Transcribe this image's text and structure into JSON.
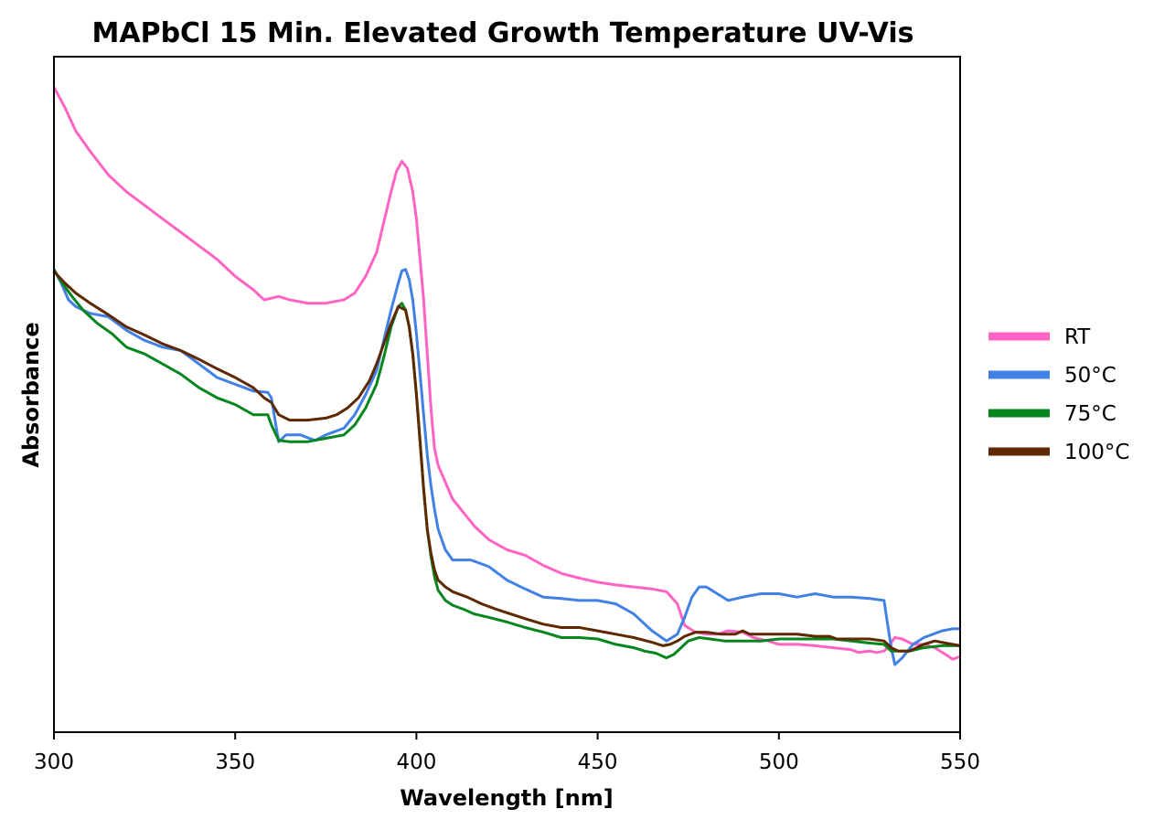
{
  "chart_data": {
    "type": "line",
    "title": "MAPbCl 15 Min. Elevated Growth Temperature UV-Vis",
    "xlabel": "Wavelength [nm]",
    "ylabel": "Absorbance",
    "xlim": [
      300,
      550
    ],
    "ylim": [
      0,
      1
    ],
    "x_ticks": [
      300,
      350,
      400,
      450,
      500,
      550
    ],
    "y_ticks_shown": false,
    "grid": false,
    "legend_position": "right",
    "series": [
      {
        "name": "RT",
        "color": "#ff63c3",
        "points": [
          [
            300,
            0.955
          ],
          [
            303,
            0.925
          ],
          [
            306,
            0.89
          ],
          [
            310,
            0.86
          ],
          [
            315,
            0.825
          ],
          [
            320,
            0.8
          ],
          [
            325,
            0.78
          ],
          [
            330,
            0.76
          ],
          [
            335,
            0.74
          ],
          [
            340,
            0.72
          ],
          [
            345,
            0.7
          ],
          [
            350,
            0.675
          ],
          [
            355,
            0.655
          ],
          [
            358,
            0.64
          ],
          [
            362,
            0.645
          ],
          [
            365,
            0.64
          ],
          [
            370,
            0.635
          ],
          [
            375,
            0.635
          ],
          [
            380,
            0.64
          ],
          [
            383,
            0.65
          ],
          [
            386,
            0.675
          ],
          [
            389,
            0.71
          ],
          [
            391,
            0.755
          ],
          [
            393,
            0.8
          ],
          [
            394.5,
            0.83
          ],
          [
            396,
            0.845
          ],
          [
            397.5,
            0.835
          ],
          [
            399,
            0.8
          ],
          [
            400,
            0.76
          ],
          [
            401,
            0.7
          ],
          [
            402,
            0.64
          ],
          [
            403,
            0.56
          ],
          [
            404,
            0.48
          ],
          [
            405,
            0.42
          ],
          [
            406,
            0.395
          ],
          [
            408,
            0.37
          ],
          [
            410,
            0.345
          ],
          [
            413,
            0.325
          ],
          [
            416,
            0.305
          ],
          [
            420,
            0.285
          ],
          [
            425,
            0.27
          ],
          [
            430,
            0.262
          ],
          [
            435,
            0.247
          ],
          [
            440,
            0.235
          ],
          [
            445,
            0.228
          ],
          [
            450,
            0.222
          ],
          [
            455,
            0.218
          ],
          [
            460,
            0.215
          ],
          [
            465,
            0.212
          ],
          [
            469,
            0.208
          ],
          [
            472,
            0.19
          ],
          [
            474,
            0.158
          ],
          [
            477,
            0.148
          ],
          [
            480,
            0.145
          ],
          [
            483,
            0.145
          ],
          [
            486,
            0.15
          ],
          [
            490,
            0.148
          ],
          [
            493,
            0.14
          ],
          [
            497,
            0.135
          ],
          [
            500,
            0.13
          ],
          [
            505,
            0.13
          ],
          [
            510,
            0.128
          ],
          [
            515,
            0.125
          ],
          [
            520,
            0.122
          ],
          [
            522,
            0.118
          ],
          [
            525,
            0.12
          ],
          [
            527,
            0.118
          ],
          [
            529,
            0.12
          ],
          [
            530,
            0.125
          ],
          [
            532,
            0.14
          ],
          [
            534,
            0.138
          ],
          [
            537,
            0.13
          ],
          [
            540,
            0.13
          ],
          [
            543,
            0.125
          ],
          [
            546,
            0.115
          ],
          [
            548,
            0.108
          ],
          [
            550,
            0.112
          ]
        ]
      },
      {
        "name": "50°C",
        "color": "#4181e5",
        "points": [
          [
            300,
            0.685
          ],
          [
            302,
            0.665
          ],
          [
            304,
            0.64
          ],
          [
            306,
            0.63
          ],
          [
            310,
            0.62
          ],
          [
            315,
            0.615
          ],
          [
            320,
            0.595
          ],
          [
            325,
            0.58
          ],
          [
            330,
            0.57
          ],
          [
            335,
            0.565
          ],
          [
            340,
            0.545
          ],
          [
            345,
            0.525
          ],
          [
            350,
            0.515
          ],
          [
            355,
            0.505
          ],
          [
            359,
            0.503
          ],
          [
            360,
            0.495
          ],
          [
            361,
            0.462
          ],
          [
            362,
            0.43
          ],
          [
            364,
            0.44
          ],
          [
            368,
            0.44
          ],
          [
            372,
            0.432
          ],
          [
            375,
            0.44
          ],
          [
            380,
            0.45
          ],
          [
            383,
            0.47
          ],
          [
            386,
            0.5
          ],
          [
            389,
            0.535
          ],
          [
            391,
            0.58
          ],
          [
            393,
            0.625
          ],
          [
            395,
            0.665
          ],
          [
            396,
            0.683
          ],
          [
            397,
            0.685
          ],
          [
            398,
            0.67
          ],
          [
            399,
            0.64
          ],
          [
            400,
            0.59
          ],
          [
            401,
            0.53
          ],
          [
            402,
            0.47
          ],
          [
            403,
            0.41
          ],
          [
            404,
            0.365
          ],
          [
            405,
            0.33
          ],
          [
            406,
            0.3
          ],
          [
            408,
            0.27
          ],
          [
            410,
            0.255
          ],
          [
            415,
            0.255
          ],
          [
            420,
            0.245
          ],
          [
            425,
            0.225
          ],
          [
            430,
            0.212
          ],
          [
            435,
            0.2
          ],
          [
            440,
            0.198
          ],
          [
            445,
            0.195
          ],
          [
            450,
            0.195
          ],
          [
            455,
            0.19
          ],
          [
            460,
            0.175
          ],
          [
            463,
            0.16
          ],
          [
            465,
            0.15
          ],
          [
            469,
            0.135
          ],
          [
            472,
            0.145
          ],
          [
            474,
            0.17
          ],
          [
            476,
            0.2
          ],
          [
            478,
            0.215
          ],
          [
            480,
            0.215
          ],
          [
            483,
            0.205
          ],
          [
            486,
            0.195
          ],
          [
            490,
            0.2
          ],
          [
            495,
            0.205
          ],
          [
            500,
            0.205
          ],
          [
            505,
            0.2
          ],
          [
            510,
            0.205
          ],
          [
            515,
            0.2
          ],
          [
            520,
            0.2
          ],
          [
            525,
            0.198
          ],
          [
            529,
            0.195
          ],
          [
            530,
            0.16
          ],
          [
            531,
            0.125
          ],
          [
            532,
            0.1
          ],
          [
            534,
            0.11
          ],
          [
            537,
            0.13
          ],
          [
            540,
            0.14
          ],
          [
            545,
            0.15
          ],
          [
            548,
            0.153
          ],
          [
            550,
            0.153
          ]
        ]
      },
      {
        "name": "75°C",
        "color": "#07861f",
        "points": [
          [
            300,
            0.685
          ],
          [
            302,
            0.667
          ],
          [
            305,
            0.645
          ],
          [
            308,
            0.625
          ],
          [
            312,
            0.605
          ],
          [
            316,
            0.59
          ],
          [
            320,
            0.57
          ],
          [
            325,
            0.56
          ],
          [
            330,
            0.545
          ],
          [
            335,
            0.53
          ],
          [
            340,
            0.51
          ],
          [
            345,
            0.495
          ],
          [
            350,
            0.485
          ],
          [
            355,
            0.47
          ],
          [
            359,
            0.47
          ],
          [
            360,
            0.455
          ],
          [
            362,
            0.432
          ],
          [
            365,
            0.43
          ],
          [
            370,
            0.43
          ],
          [
            375,
            0.435
          ],
          [
            380,
            0.44
          ],
          [
            383,
            0.455
          ],
          [
            386,
            0.48
          ],
          [
            389,
            0.515
          ],
          [
            391,
            0.555
          ],
          [
            393,
            0.6
          ],
          [
            395,
            0.63
          ],
          [
            396,
            0.635
          ],
          [
            397,
            0.625
          ],
          [
            398,
            0.6
          ],
          [
            399,
            0.56
          ],
          [
            400,
            0.5
          ],
          [
            401,
            0.43
          ],
          [
            402,
            0.36
          ],
          [
            403,
            0.3
          ],
          [
            404,
            0.26
          ],
          [
            405,
            0.23
          ],
          [
            406,
            0.21
          ],
          [
            408,
            0.195
          ],
          [
            410,
            0.188
          ],
          [
            413,
            0.182
          ],
          [
            416,
            0.175
          ],
          [
            420,
            0.17
          ],
          [
            425,
            0.163
          ],
          [
            430,
            0.155
          ],
          [
            435,
            0.148
          ],
          [
            440,
            0.14
          ],
          [
            445,
            0.14
          ],
          [
            450,
            0.138
          ],
          [
            455,
            0.13
          ],
          [
            460,
            0.125
          ],
          [
            463,
            0.12
          ],
          [
            466,
            0.117
          ],
          [
            469,
            0.11
          ],
          [
            471,
            0.115
          ],
          [
            473,
            0.125
          ],
          [
            475,
            0.135
          ],
          [
            478,
            0.14
          ],
          [
            481,
            0.138
          ],
          [
            485,
            0.135
          ],
          [
            490,
            0.135
          ],
          [
            495,
            0.135
          ],
          [
            500,
            0.138
          ],
          [
            505,
            0.138
          ],
          [
            510,
            0.138
          ],
          [
            515,
            0.138
          ],
          [
            520,
            0.135
          ],
          [
            525,
            0.132
          ],
          [
            529,
            0.13
          ],
          [
            531,
            0.12
          ],
          [
            533,
            0.12
          ],
          [
            536,
            0.12
          ],
          [
            540,
            0.125
          ],
          [
            545,
            0.128
          ],
          [
            550,
            0.128
          ]
        ]
      },
      {
        "name": "100°C",
        "color": "#5e2800",
        "points": [
          [
            300,
            0.682
          ],
          [
            303,
            0.665
          ],
          [
            306,
            0.65
          ],
          [
            310,
            0.635
          ],
          [
            315,
            0.618
          ],
          [
            320,
            0.6
          ],
          [
            325,
            0.588
          ],
          [
            330,
            0.575
          ],
          [
            335,
            0.565
          ],
          [
            340,
            0.552
          ],
          [
            345,
            0.538
          ],
          [
            350,
            0.525
          ],
          [
            355,
            0.51
          ],
          [
            358,
            0.495
          ],
          [
            360,
            0.488
          ],
          [
            362,
            0.47
          ],
          [
            365,
            0.462
          ],
          [
            370,
            0.462
          ],
          [
            375,
            0.465
          ],
          [
            378,
            0.47
          ],
          [
            381,
            0.48
          ],
          [
            384,
            0.495
          ],
          [
            387,
            0.52
          ],
          [
            389,
            0.545
          ],
          [
            391,
            0.575
          ],
          [
            393,
            0.605
          ],
          [
            395,
            0.63
          ],
          [
            397,
            0.625
          ],
          [
            398,
            0.6
          ],
          [
            399,
            0.56
          ],
          [
            400,
            0.5
          ],
          [
            401,
            0.43
          ],
          [
            402,
            0.36
          ],
          [
            403,
            0.3
          ],
          [
            404,
            0.265
          ],
          [
            405,
            0.24
          ],
          [
            406,
            0.225
          ],
          [
            408,
            0.215
          ],
          [
            410,
            0.208
          ],
          [
            414,
            0.2
          ],
          [
            418,
            0.19
          ],
          [
            422,
            0.182
          ],
          [
            426,
            0.175
          ],
          [
            430,
            0.168
          ],
          [
            435,
            0.16
          ],
          [
            440,
            0.155
          ],
          [
            445,
            0.155
          ],
          [
            450,
            0.15
          ],
          [
            455,
            0.145
          ],
          [
            460,
            0.14
          ],
          [
            465,
            0.133
          ],
          [
            468,
            0.128
          ],
          [
            470,
            0.13
          ],
          [
            472,
            0.135
          ],
          [
            474,
            0.142
          ],
          [
            477,
            0.148
          ],
          [
            480,
            0.148
          ],
          [
            484,
            0.145
          ],
          [
            488,
            0.145
          ],
          [
            490,
            0.15
          ],
          [
            492,
            0.145
          ],
          [
            497,
            0.145
          ],
          [
            500,
            0.145
          ],
          [
            505,
            0.145
          ],
          [
            510,
            0.142
          ],
          [
            514,
            0.142
          ],
          [
            516,
            0.138
          ],
          [
            520,
            0.138
          ],
          [
            525,
            0.138
          ],
          [
            529,
            0.135
          ],
          [
            531,
            0.125
          ],
          [
            533,
            0.12
          ],
          [
            536,
            0.12
          ],
          [
            540,
            0.13
          ],
          [
            543,
            0.135
          ],
          [
            546,
            0.132
          ],
          [
            550,
            0.128
          ]
        ]
      }
    ]
  }
}
